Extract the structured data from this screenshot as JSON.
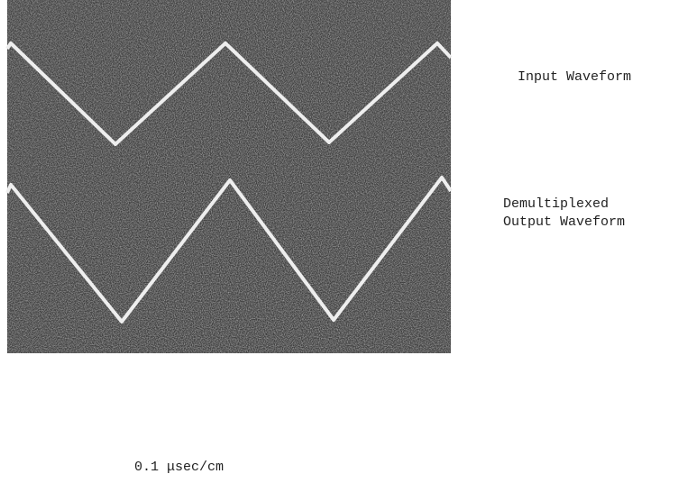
{
  "traces": [
    {
      "label_lines": [
        "Input Waveform"
      ]
    },
    {
      "label_lines": [
        "Demultiplexed",
        "Output Waveform"
      ]
    }
  ],
  "caption": "0.1 μsec/cm"
}
